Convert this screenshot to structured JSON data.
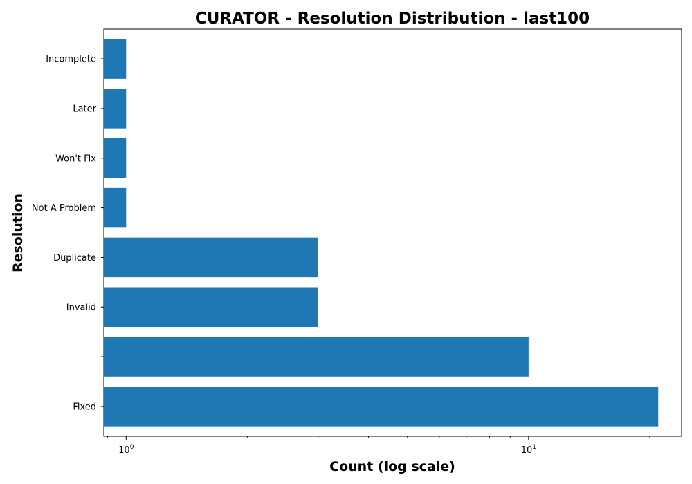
{
  "chart_data": {
    "type": "bar",
    "orientation": "horizontal",
    "title": "CURATOR - Resolution Distribution - last100",
    "xlabel": "Count (log scale)",
    "ylabel": "Resolution",
    "x_scale": "log",
    "xlim": [
      0.88,
      24
    ],
    "x_major_ticks": [
      {
        "value": 1,
        "base": "10",
        "exp": "0"
      },
      {
        "value": 10,
        "base": "10",
        "exp": "1"
      }
    ],
    "categories": [
      "Fixed",
      "",
      "Invalid",
      "Duplicate",
      "Not A Problem",
      "Won't Fix",
      "Later",
      "Incomplete"
    ],
    "values": [
      21,
      10,
      3,
      3,
      1,
      1,
      1,
      1
    ],
    "bar_color": "#1f77b4",
    "grid": false,
    "legend": "none"
  }
}
